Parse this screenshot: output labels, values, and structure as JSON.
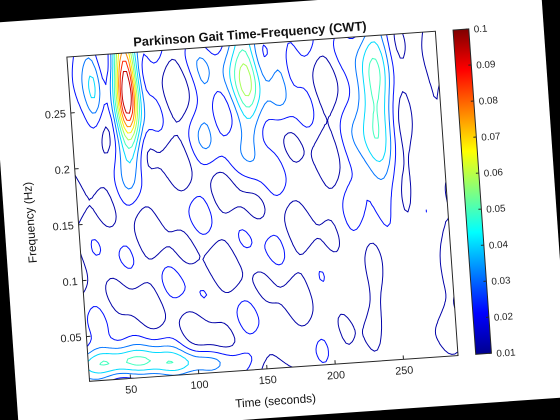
{
  "chart_data": {
    "type": "heatmap",
    "subtype": "contour",
    "title": "Parkinson Gait Time-Frequency (CWT)",
    "xlabel": "Time (seconds)",
    "ylabel": "Frequency (Hz)",
    "xlim": [
      20,
      290
    ],
    "ylim": [
      0.01,
      0.3
    ],
    "xticks": [
      50,
      100,
      150,
      200,
      250
    ],
    "yticks": [
      0.05,
      0.1,
      0.15,
      0.2,
      0.25
    ],
    "colorbar": {
      "range": [
        0.01,
        0.1
      ],
      "ticks": [
        0.01,
        0.02,
        0.03,
        0.04,
        0.05,
        0.06,
        0.07,
        0.08,
        0.09,
        0.1
      ],
      "colormap": "jet"
    },
    "grid": false,
    "hotspots": [
      {
        "t": 62,
        "f": 0.27,
        "value": 0.1,
        "spread_t": 6,
        "spread_f": 0.04
      },
      {
        "t": 150,
        "f": 0.27,
        "value": 0.06,
        "spread_t": 7,
        "spread_f": 0.05
      },
      {
        "t": 38,
        "f": 0.27,
        "value": 0.04,
        "spread_t": 5,
        "spread_f": 0.03
      },
      {
        "t": 240,
        "f": 0.24,
        "value": 0.045,
        "spread_t": 10,
        "spread_f": 0.06
      },
      {
        "t": 120,
        "f": 0.26,
        "value": 0.03,
        "spread_t": 6,
        "spread_f": 0.04
      },
      {
        "t": 40,
        "f": 0.025,
        "value": 0.05,
        "spread_t": 25,
        "spread_f": 0.01
      },
      {
        "t": 100,
        "f": 0.02,
        "value": 0.03,
        "spread_t": 30,
        "spread_f": 0.008
      },
      {
        "t": 175,
        "f": 0.28,
        "value": 0.035,
        "spread_t": 6,
        "spread_f": 0.03
      }
    ]
  }
}
